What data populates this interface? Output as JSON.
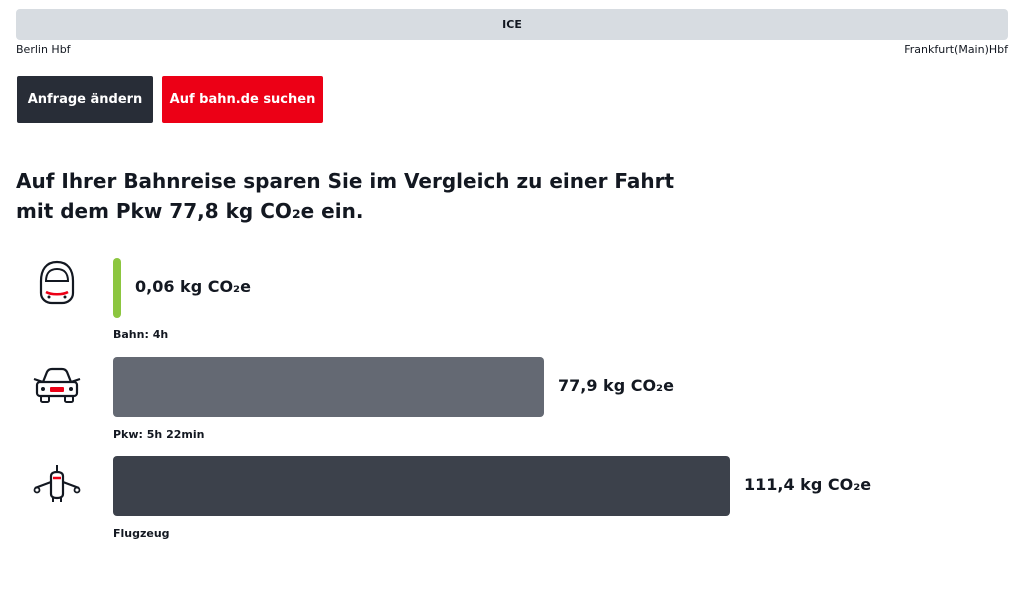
{
  "route": {
    "train_type": "ICE",
    "from": "Berlin Hbf",
    "to": "Frankfurt(Main)Hbf"
  },
  "buttons": {
    "change_request": "Anfrage ändern",
    "search_bahn": "Auf bahn.de suchen"
  },
  "headline": "Auf Ihrer Bahnreise sparen Sie im Vergleich zu einer Fahrt mit dem Pkw 77,8 kg CO₂e ein.",
  "colors": {
    "train": "#8cc63f",
    "car": "#646973",
    "plane": "#3c414b",
    "accent_red": "#ec0016",
    "dark_button": "#282d37"
  },
  "chart_data": {
    "type": "bar",
    "orientation": "horizontal",
    "unit": "kg CO₂e",
    "categories": [
      "Bahn: 4h",
      "Pkw: 5h 22min",
      "Flugzeug"
    ],
    "values": [
      0.06,
      77.9,
      111.4
    ],
    "value_labels": [
      "0,06 kg CO₂e",
      "77,9 kg CO₂e",
      "111,4 kg CO₂e"
    ],
    "icons": [
      "train-icon",
      "car-icon",
      "airplane-icon"
    ],
    "title": "",
    "xlabel": "",
    "ylabel": ""
  }
}
